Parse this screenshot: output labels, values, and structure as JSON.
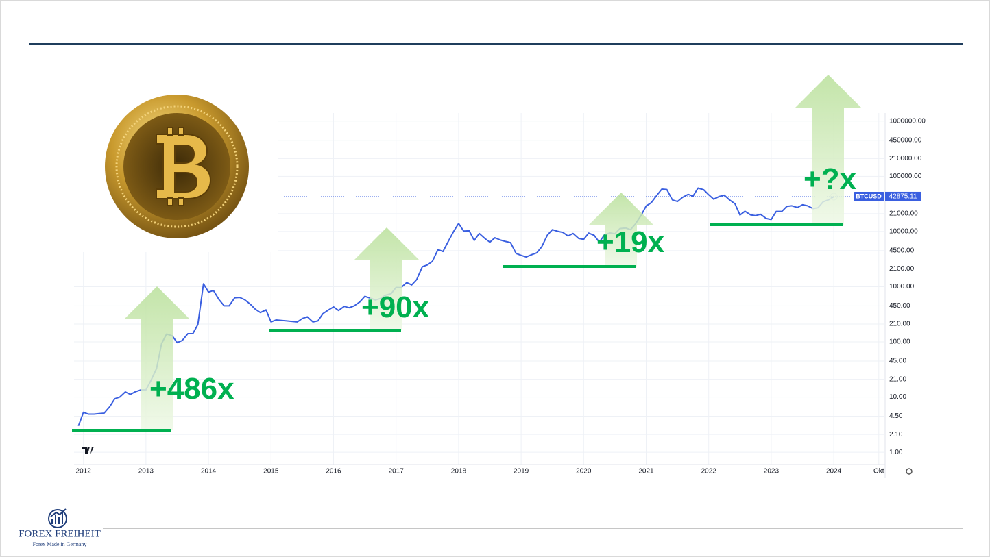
{
  "chart_data": {
    "type": "line",
    "log_scale": true,
    "grid": true,
    "x": [
      2011.92,
      2012.0,
      2012.08,
      2012.17,
      2012.25,
      2012.33,
      2012.42,
      2012.5,
      2012.58,
      2012.67,
      2012.75,
      2012.83,
      2012.92,
      2013.0,
      2013.08,
      2013.17,
      2013.25,
      2013.33,
      2013.42,
      2013.5,
      2013.58,
      2013.67,
      2013.75,
      2013.83,
      2013.92,
      2014.0,
      2014.08,
      2014.17,
      2014.25,
      2014.33,
      2014.42,
      2014.5,
      2014.58,
      2014.67,
      2014.75,
      2014.83,
      2014.92,
      2015.0,
      2015.08,
      2015.17,
      2015.25,
      2015.33,
      2015.42,
      2015.5,
      2015.58,
      2015.67,
      2015.75,
      2015.83,
      2015.92,
      2016.0,
      2016.08,
      2016.17,
      2016.25,
      2016.33,
      2016.42,
      2016.5,
      2016.58,
      2016.67,
      2016.75,
      2016.83,
      2016.92,
      2017.0,
      2017.08,
      2017.17,
      2017.25,
      2017.33,
      2017.42,
      2017.5,
      2017.58,
      2017.67,
      2017.75,
      2017.83,
      2017.92,
      2018.0,
      2018.08,
      2018.17,
      2018.25,
      2018.33,
      2018.42,
      2018.5,
      2018.58,
      2018.67,
      2018.75,
      2018.83,
      2018.92,
      2019.0,
      2019.08,
      2019.17,
      2019.25,
      2019.33,
      2019.42,
      2019.5,
      2019.58,
      2019.67,
      2019.75,
      2019.83,
      2019.92,
      2020.0,
      2020.08,
      2020.17,
      2020.25,
      2020.33,
      2020.42,
      2020.5,
      2020.58,
      2020.67,
      2020.75,
      2020.83,
      2020.92,
      2021.0,
      2021.08,
      2021.17,
      2021.25,
      2021.33,
      2021.42,
      2021.5,
      2021.58,
      2021.67,
      2021.75,
      2021.83,
      2021.92,
      2022.0,
      2022.08,
      2022.17,
      2022.25,
      2022.33,
      2022.42,
      2022.5,
      2022.58,
      2022.67,
      2022.75,
      2022.83,
      2022.92,
      2023.0,
      2023.08,
      2023.17,
      2023.25,
      2023.33,
      2023.42,
      2023.5,
      2023.58,
      2023.67,
      2023.75,
      2023.83,
      2023.92,
      2024.0
    ],
    "series": [
      {
        "name": "BTCUSD",
        "color": "#3a5fe0",
        "values": [
          3.0,
          5.3,
          4.9,
          4.9,
          5.0,
          5.1,
          6.7,
          9.3,
          10,
          12.4,
          11.2,
          12.5,
          13.5,
          13.5,
          20,
          33,
          93,
          139,
          129,
          97,
          106,
          141,
          141,
          206,
          1130,
          800,
          850,
          580,
          450,
          450,
          630,
          640,
          580,
          480,
          390,
          340,
          380,
          230,
          250,
          245,
          240,
          235,
          230,
          265,
          285,
          230,
          240,
          325,
          380,
          430,
          370,
          440,
          415,
          450,
          530,
          670,
          625,
          575,
          610,
          700,
          745,
          970,
          965,
          1190,
          1080,
          1350,
          2300,
          2480,
          2870,
          4700,
          4340,
          6450,
          10000,
          14000,
          10200,
          10300,
          6900,
          9200,
          7500,
          6400,
          7700,
          7000,
          6600,
          6300,
          4000,
          3700,
          3450,
          3800,
          4100,
          5300,
          8600,
          10800,
          10100,
          9600,
          8300,
          9200,
          7500,
          7200,
          9350,
          8500,
          6400,
          8600,
          9450,
          9100,
          11300,
          11600,
          10800,
          13800,
          19700,
          29000,
          33100,
          45100,
          58700,
          57700,
          37300,
          35000,
          41500,
          47100,
          43800,
          61300,
          57000,
          46200,
          38500,
          43200,
          45500,
          37700,
          31800,
          19900,
          23300,
          20000,
          19400,
          20500,
          17200,
          16500,
          23100,
          23100,
          28500,
          29200,
          27200,
          30500,
          29200,
          26000,
          27000,
          34500,
          37700,
          42875.11
        ]
      }
    ],
    "last_price": 42875.11,
    "xlim": [
      2011.85,
      2024.81
    ],
    "xticks": [
      2012,
      2013,
      2014,
      2015,
      2016,
      2017,
      2018,
      2019,
      2020,
      2021,
      2022,
      2023,
      2024,
      {
        "value": 2024.72,
        "label": "Okt"
      }
    ],
    "ylim": [
      0.6,
      1400000
    ],
    "yticks": [
      {
        "value": 1,
        "label": "1.00"
      },
      {
        "value": 2.1,
        "label": "2.10"
      },
      {
        "value": 4.5,
        "label": "4.50"
      },
      {
        "value": 10,
        "label": "10.00"
      },
      {
        "value": 21,
        "label": "21.00"
      },
      {
        "value": 45,
        "label": "45.00"
      },
      {
        "value": 100,
        "label": "100.00"
      },
      {
        "value": 210,
        "label": "210.00"
      },
      {
        "value": 450,
        "label": "450.00"
      },
      {
        "value": 1000,
        "label": "1000.00"
      },
      {
        "value": 2100,
        "label": "2100.00"
      },
      {
        "value": 4500,
        "label": "4500.00"
      },
      {
        "value": 10000,
        "label": "10000.00"
      },
      {
        "value": 21000,
        "label": "21000.00"
      },
      {
        "value": 100000,
        "label": "100000.00"
      },
      {
        "value": 210000,
        "label": "210000.00"
      },
      {
        "value": 450000,
        "label": "450000.00"
      },
      {
        "value": 1000000,
        "label": "1000000.00"
      }
    ],
    "annotations": [
      "+486x",
      "+90x",
      "+19x",
      "+?x"
    ]
  },
  "logo": {
    "name": "FOREX FREIHEIT",
    "tagline": "Forex Made in Germany"
  }
}
